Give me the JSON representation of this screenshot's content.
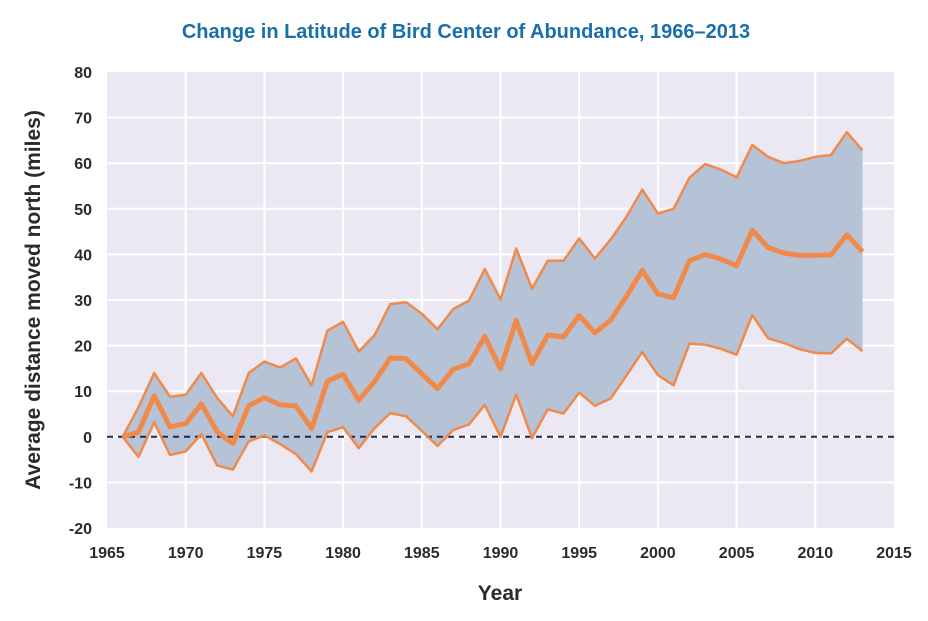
{
  "chart_data": {
    "type": "line",
    "title": "Change in Latitude of Bird Center of Abundance, 1966–2013",
    "xlabel": "Year",
    "ylabel": "Average distance moved north (miles)",
    "xlim": [
      1965,
      2015
    ],
    "ylim": [
      -20,
      80
    ],
    "xticks": [
      1965,
      1970,
      1975,
      1980,
      1985,
      1990,
      1995,
      2000,
      2005,
      2010,
      2015
    ],
    "yticks": [
      -20,
      -10,
      0,
      10,
      20,
      30,
      40,
      50,
      60,
      70,
      80
    ],
    "grid": true,
    "reference_line": 0,
    "colors": {
      "title": "#1a6fa8",
      "plot_background": "#ece8f3",
      "gridline": "#ffffff",
      "band_fill": "#b6c2d6",
      "line": "#f08a4b",
      "reference_line": "#1d2a4a",
      "text": "#2b2b2b"
    },
    "x": [
      1966,
      1967,
      1968,
      1969,
      1970,
      1971,
      1972,
      1973,
      1974,
      1975,
      1976,
      1977,
      1978,
      1979,
      1980,
      1981,
      1982,
      1983,
      1984,
      1985,
      1986,
      1987,
      1988,
      1989,
      1990,
      1991,
      1992,
      1993,
      1994,
      1995,
      1996,
      1997,
      1998,
      1999,
      2000,
      2001,
      2002,
      2003,
      2004,
      2005,
      2006,
      2007,
      2008,
      2009,
      2010,
      2011,
      2012,
      2013
    ],
    "series": [
      {
        "role": "upper",
        "values": [
          0,
          6.5,
          14,
          8.8,
          9.2,
          14,
          8.5,
          4.5,
          14,
          16.5,
          15.2,
          17.2,
          11.3,
          23.3,
          25.2,
          18.7,
          22.3,
          29.1,
          29.5,
          27,
          23.6,
          28,
          29.9,
          36.8,
          30.1,
          41.3,
          32.5,
          38.6,
          38.6,
          43.5,
          39.1,
          43.3,
          48.2,
          54.2,
          49,
          50,
          56.8,
          59.8,
          58.6,
          56.9,
          64,
          61.4,
          60,
          60.5,
          61.4,
          61.8,
          66.8,
          62.8
        ]
      },
      {
        "role": "mean",
        "values": [
          0,
          1,
          9,
          2.2,
          2.9,
          7.2,
          1.1,
          -1.5,
          6.8,
          8.6,
          7,
          6.8,
          1.8,
          12.2,
          13.7,
          8,
          12.1,
          17.3,
          17.1,
          13.8,
          10.6,
          14.8,
          16,
          22,
          14.9,
          25.5,
          16,
          22.3,
          21.9,
          26.6,
          22.8,
          25.6,
          30.8,
          36.5,
          31.3,
          30.5,
          38.6,
          40,
          39,
          37.5,
          45.3,
          41.5,
          40.3,
          39.8,
          39.8,
          39.9,
          44.3,
          40.6
        ]
      },
      {
        "role": "lower",
        "values": [
          0,
          -4.4,
          3.2,
          -4,
          -3.2,
          0.6,
          -6.3,
          -7.2,
          -1,
          0.3,
          -1.6,
          -3.8,
          -7.6,
          1,
          2.1,
          -2.5,
          1.9,
          5.2,
          4.5,
          1.3,
          -2,
          1.5,
          2.7,
          7,
          0,
          9.3,
          -0.3,
          6,
          5.1,
          9.7,
          6.8,
          8.4,
          13.4,
          18.6,
          13.5,
          11.3,
          20.4,
          20.2,
          19.3,
          18,
          26.7,
          21.6,
          20.6,
          19.2,
          18.4,
          18.3,
          21.5,
          18.8
        ]
      }
    ]
  }
}
